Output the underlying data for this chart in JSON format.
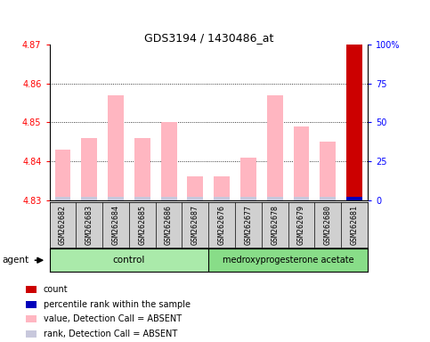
{
  "title": "GDS3194 / 1430486_at",
  "samples": [
    "GSM262682",
    "GSM262683",
    "GSM262684",
    "GSM262685",
    "GSM262686",
    "GSM262687",
    "GSM262676",
    "GSM262677",
    "GSM262678",
    "GSM262679",
    "GSM262680",
    "GSM262681"
  ],
  "values": [
    4.843,
    4.846,
    4.857,
    4.846,
    4.85,
    4.836,
    4.836,
    4.841,
    4.857,
    4.849,
    4.845,
    4.87
  ],
  "count_value": 4.87,
  "count_rank": 100,
  "ylim_left": [
    4.83,
    4.87
  ],
  "ylim_right": [
    0,
    100
  ],
  "yticks_left": [
    4.83,
    4.84,
    4.85,
    4.86,
    4.87
  ],
  "yticks_right": [
    0,
    25,
    50,
    75,
    100
  ],
  "ytick_right_labels": [
    "0",
    "25",
    "50",
    "75",
    "100%"
  ],
  "bar_color_pink": "#FFB6C1",
  "bar_color_lavender": "#C8C8DC",
  "bar_color_red": "#CC0000",
  "bar_color_blue": "#0000BB",
  "control_label": "control",
  "treatment_label": "medroxyprogesterone acetate",
  "control_count": 6,
  "treatment_count": 6,
  "agent_label": "agent",
  "legend_items": [
    {
      "color": "#CC0000",
      "label": "count"
    },
    {
      "color": "#0000BB",
      "label": "percentile rank within the sample"
    },
    {
      "color": "#FFB6C1",
      "label": "value, Detection Call = ABSENT"
    },
    {
      "color": "#C8C8DC",
      "label": "rank, Detection Call = ABSENT"
    }
  ],
  "background_color": "#FFFFFF",
  "plot_bg_color": "#FFFFFF",
  "sample_box_color": "#D0D0D0",
  "control_color": "#AAEAAA",
  "treatment_color": "#88DD88",
  "bar_base": 4.83,
  "grid_yticks": [
    4.84,
    4.85,
    4.86
  ]
}
